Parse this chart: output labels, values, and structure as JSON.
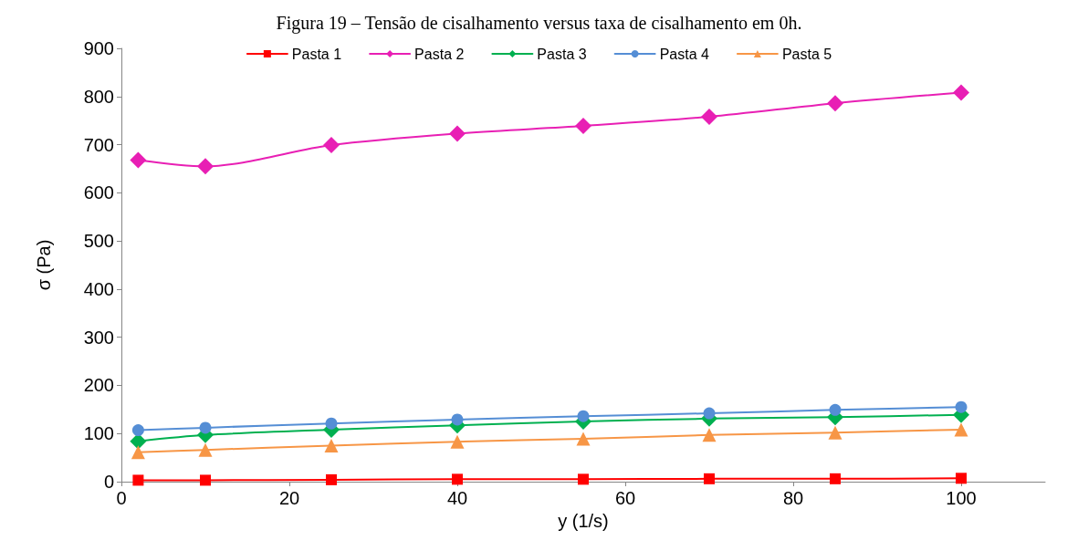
{
  "chart_data": {
    "type": "line",
    "title": "Figura 19 – Tensão de cisalhamento versus taxa de cisalhamento em 0h.",
    "xlabel": "y (1/s)",
    "ylabel": "σ (Pa)",
    "x": [
      2,
      10,
      25,
      40,
      55,
      70,
      85,
      100
    ],
    "series": [
      {
        "name": "Pasta 1",
        "color": "#ff0000",
        "marker": "square",
        "values": [
          3,
          3,
          4,
          5,
          5,
          6,
          6,
          7
        ]
      },
      {
        "name": "Pasta 2",
        "color": "#e81fb4",
        "marker": "diamond",
        "values": [
          668,
          655,
          699,
          723,
          739,
          758,
          786,
          808
        ]
      },
      {
        "name": "Pasta 3",
        "color": "#00b050",
        "marker": "diamond",
        "values": [
          84,
          97,
          108,
          117,
          125,
          131,
          134,
          139
        ]
      },
      {
        "name": "Pasta 4",
        "color": "#558ed5",
        "marker": "circle",
        "values": [
          107,
          112,
          121,
          129,
          136,
          142,
          149,
          155
        ]
      },
      {
        "name": "Pasta 5",
        "color": "#f79646",
        "marker": "triangle",
        "values": [
          61,
          66,
          75,
          83,
          89,
          97,
          102,
          108
        ]
      }
    ],
    "xlim": [
      0,
      110
    ],
    "xticks": [
      0,
      20,
      40,
      60,
      80,
      100
    ],
    "ylim": [
      0,
      900
    ],
    "yticks": [
      0,
      100,
      200,
      300,
      400,
      500,
      600,
      700,
      800,
      900
    ],
    "grid": false,
    "legend": "top",
    "line_style": "solid"
  }
}
